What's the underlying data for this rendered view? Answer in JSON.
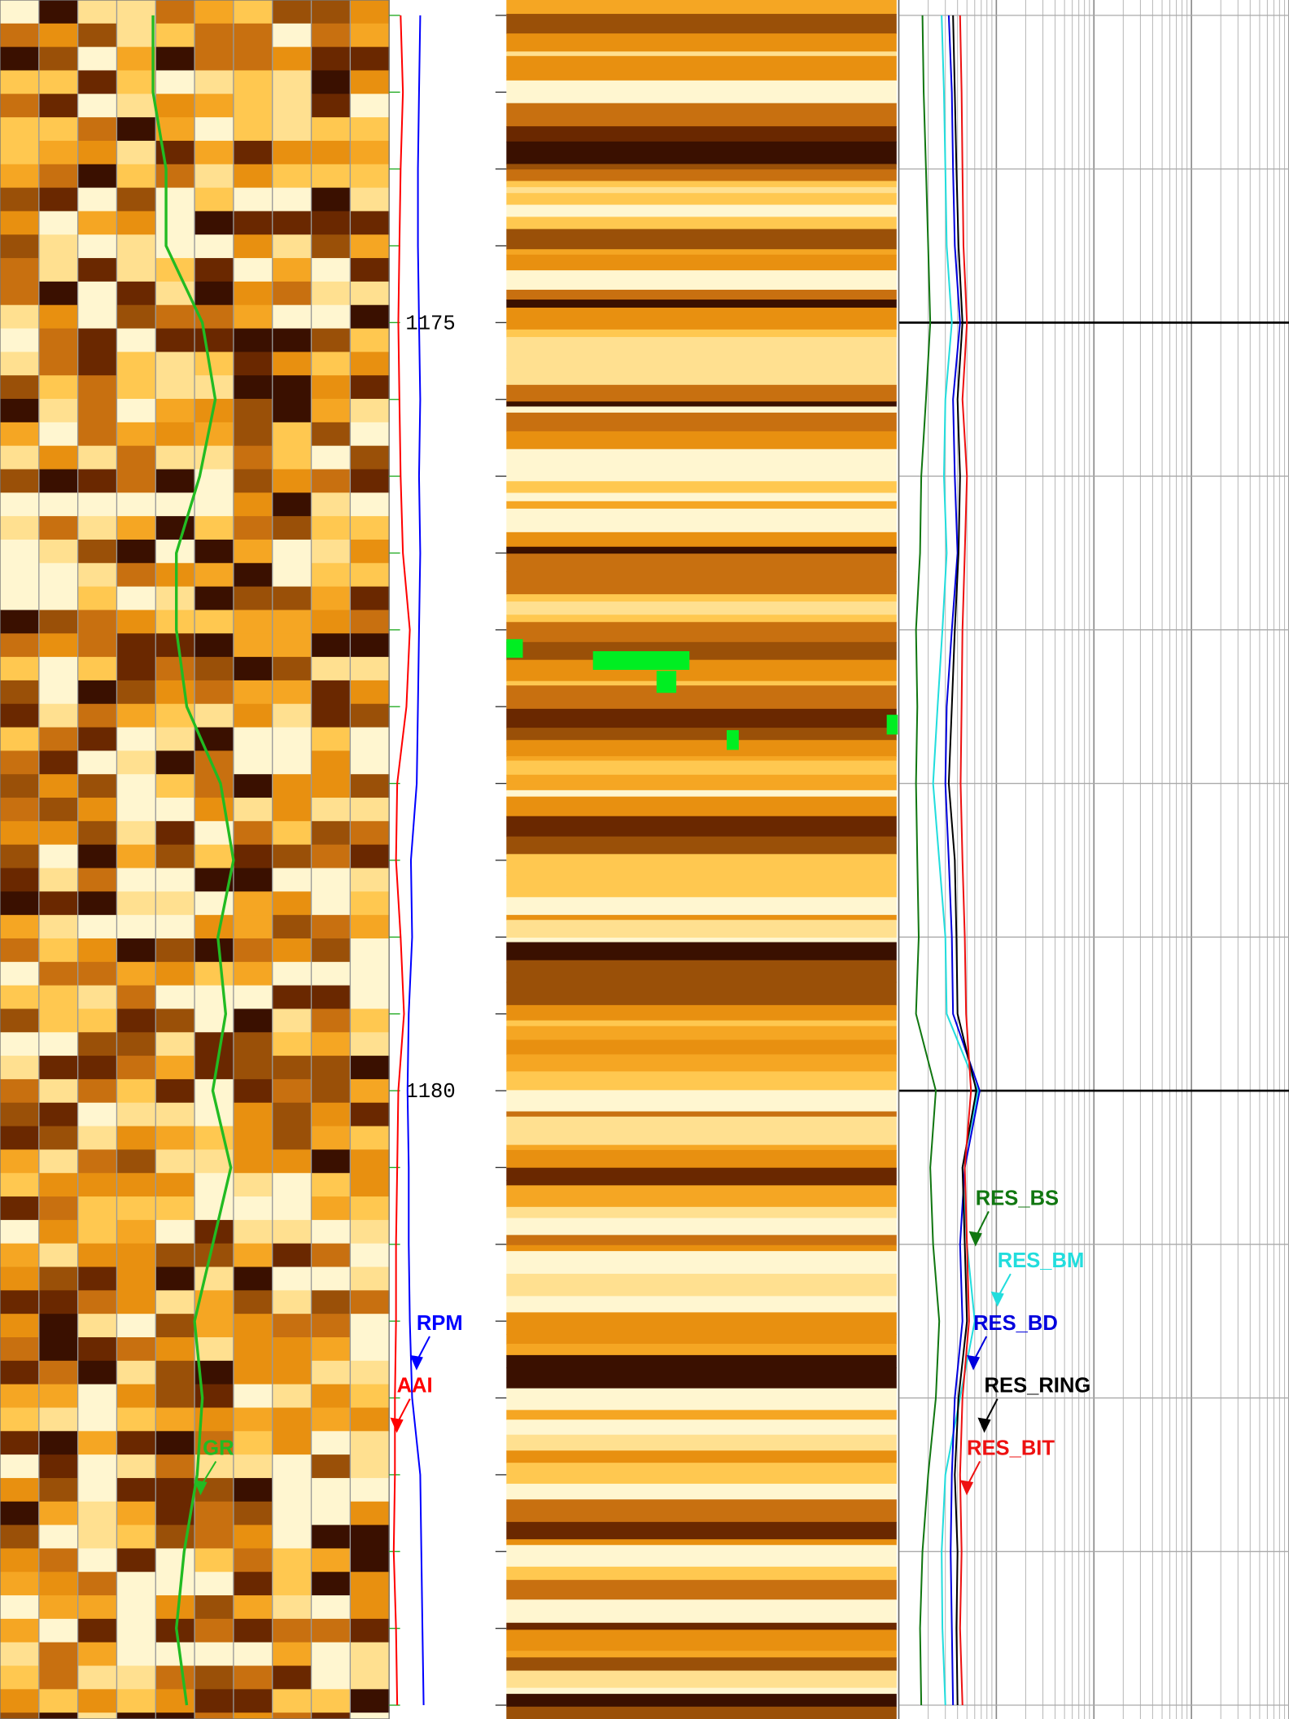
{
  "chart_data": {
    "type": "well-log",
    "ylim": [
      1172.9,
      1184.09
    ],
    "yticks": [
      1175,
      1180
    ],
    "depth": [
      1173,
      1173.5,
      1174,
      1174.5,
      1175,
      1175.5,
      1176,
      1176.5,
      1177,
      1177.5,
      1178,
      1178.5,
      1179,
      1179.5,
      1180,
      1180.5,
      1181,
      1181.5,
      1182,
      1182.5,
      1183,
      1183.5,
      1184
    ],
    "tracks": [
      {
        "xlim": [
          0,
          150
        ],
        "series": [
          {
            "name": "GR",
            "color": "#22bb22",
            "values": [
              59,
              59,
              64,
              64,
              78,
              83,
              77,
              68,
              68,
              72,
              85,
              90,
              84,
              87,
              82,
              89,
              82,
              75,
              78,
              76,
              71,
              68,
              72
            ]
          }
        ]
      },
      {
        "xlim": [
          0,
          100
        ],
        "series": [
          {
            "name": "RPM",
            "color": "#0000ff",
            "values": [
              27,
              26,
              25,
              25,
              26,
              27,
              26,
              27,
              26,
              25,
              24,
              19,
              20,
              17,
              16,
              17,
              17,
              18,
              20,
              27,
              28,
              29,
              30
            ]
          },
          {
            "name": "AAI",
            "color": "#ff0000",
            "values": [
              10,
              12,
              10,
              9,
              8,
              9,
              10,
              12,
              18,
              15,
              7,
              6,
              10,
              13,
              8,
              7,
              6,
              6,
              5,
              5,
              4,
              6,
              7
            ]
          }
        ]
      },
      {
        "log": true,
        "xlim": [
          0.2,
          2000
        ],
        "xticks": [
          0.2,
          2,
          20,
          200,
          2000
        ],
        "series": [
          {
            "name": "RES_BS",
            "color": "#117711",
            "values": [
              0.35,
              0.36,
              0.38,
              0.4,
              0.42,
              0.38,
              0.34,
              0.33,
              0.3,
              0.31,
              0.3,
              0.31,
              0.32,
              0.3,
              0.48,
              0.42,
              0.45,
              0.52,
              0.48,
              0.4,
              0.35,
              0.33,
              0.34
            ]
          },
          {
            "name": "RES_BM",
            "color": "#22dddd",
            "values": [
              0.55,
              0.58,
              0.6,
              0.62,
              0.7,
              0.6,
              0.58,
              0.62,
              0.56,
              0.5,
              0.45,
              0.52,
              0.6,
              0.62,
              1.3,
              0.9,
              1.0,
              1.2,
              0.85,
              0.6,
              0.55,
              0.56,
              0.6
            ]
          },
          {
            "name": "RES_BD",
            "color": "#0000dd",
            "values": [
              0.65,
              0.7,
              0.72,
              0.75,
              0.85,
              0.72,
              0.75,
              0.8,
              0.7,
              0.62,
              0.6,
              0.65,
              0.7,
              0.72,
              1.35,
              0.95,
              0.85,
              0.9,
              0.75,
              0.7,
              0.68,
              0.7,
              0.72
            ]
          },
          {
            "name": "RES_RING",
            "color": "#000000",
            "values": [
              0.72,
              0.75,
              0.78,
              0.82,
              0.9,
              0.8,
              0.85,
              0.82,
              0.75,
              0.7,
              0.65,
              0.75,
              0.78,
              0.8,
              1.25,
              0.9,
              0.95,
              1.0,
              0.82,
              0.75,
              0.8,
              0.78,
              0.8
            ]
          },
          {
            "name": "RES_BIT",
            "color": "#ee1111",
            "values": [
              0.85,
              0.88,
              0.9,
              0.92,
              1.0,
              0.9,
              1.0,
              0.95,
              0.9,
              0.88,
              0.86,
              0.9,
              0.95,
              0.98,
              1.1,
              0.95,
              1.0,
              1.05,
              0.9,
              0.85,
              0.88,
              0.85,
              0.9
            ]
          }
        ]
      }
    ]
  }
}
